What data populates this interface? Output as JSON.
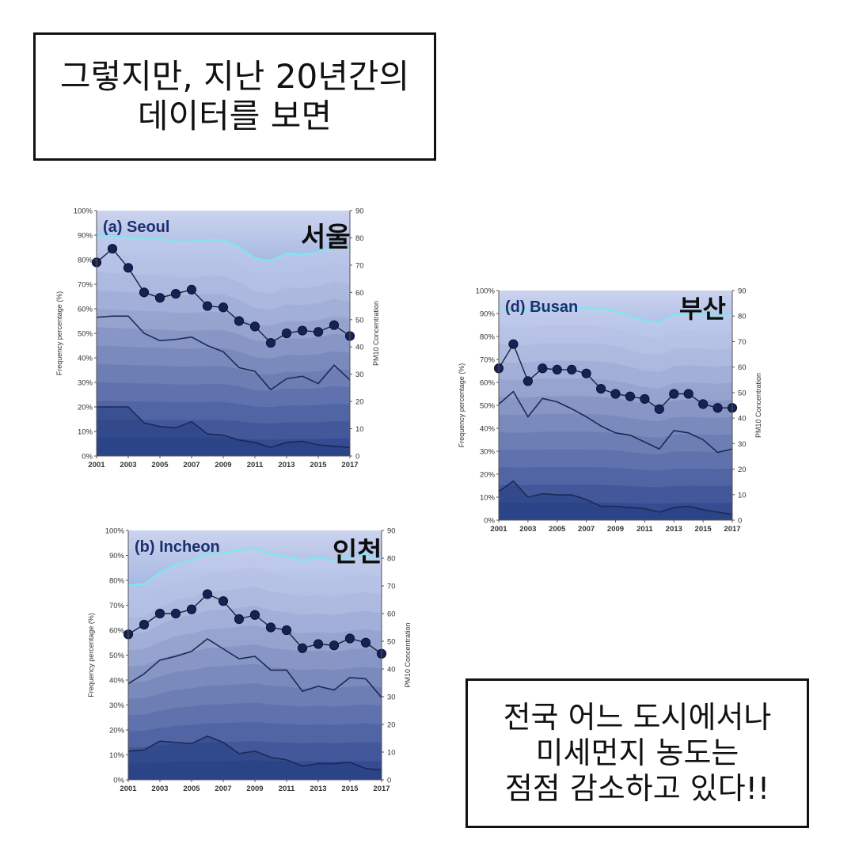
{
  "captions": {
    "top": [
      "그렇지만, 지난 20년간의",
      "데이터를 보면"
    ],
    "bottom": [
      "전국 어느 도시에서나",
      "미세먼지 농도는",
      "점점 감소하고 있다!!"
    ]
  },
  "chart_data": [
    {
      "type": "area",
      "title": "(a) Seoul",
      "city_kr": "서울",
      "ylabel": "Frequency percentage (%)",
      "y2label": "PM10 Concentration",
      "x": [
        2001,
        2002,
        2003,
        2004,
        2005,
        2006,
        2007,
        2008,
        2009,
        2010,
        2011,
        2012,
        2013,
        2014,
        2015,
        2016,
        2017
      ],
      "xticks": [
        "2001",
        "2003",
        "2005",
        "2007",
        "2009",
        "2011",
        "2013",
        "2015",
        "2017"
      ],
      "yticks": [
        "0%",
        "10%",
        "20%",
        "30%",
        "40%",
        "50%",
        "60%",
        "70%",
        "80%",
        "90%",
        "100%"
      ],
      "y2ticks": [
        "0",
        "10",
        "20",
        "30",
        "40",
        "50",
        "60",
        "70",
        "80",
        "90"
      ],
      "ylim": [
        0,
        100
      ],
      "y2lim": [
        0,
        90
      ],
      "series": [
        {
          "values": [
            20,
            20,
            20,
            13.5,
            12,
            11.5,
            14,
            9,
            8.5,
            6.5,
            5.5,
            3.5,
            5.5,
            6,
            4.5,
            4,
            3.5
          ]
        },
        {
          "values": [
            56.5,
            57,
            57,
            50,
            47,
            47.5,
            48.5,
            45,
            42.5,
            36,
            34.5,
            27,
            31.5,
            32.5,
            29.5,
            37,
            31
          ]
        },
        {
          "values": [
            90,
            89.5,
            89,
            88.5,
            88.5,
            87.5,
            87.5,
            88,
            88,
            85,
            80.5,
            79.5,
            82.5,
            82,
            83,
            85.5,
            84
          ]
        }
      ],
      "pm10": [
        71,
        76,
        69,
        60,
        58,
        59.5,
        61,
        55,
        54.5,
        49.5,
        47.5,
        41.5,
        45,
        46,
        45.5,
        48,
        44
      ]
    },
    {
      "type": "area",
      "title": "(b) Incheon",
      "city_kr": "인천",
      "ylabel": "Frequency percentage (%)",
      "y2label": "PM10 Concentration",
      "x": [
        2001,
        2002,
        2003,
        2004,
        2005,
        2006,
        2007,
        2008,
        2009,
        2010,
        2011,
        2012,
        2013,
        2014,
        2015,
        2016,
        2017
      ],
      "xticks": [
        "2001",
        "2003",
        "2005",
        "2007",
        "2009",
        "2011",
        "2013",
        "2015",
        "2017"
      ],
      "yticks": [
        "0%",
        "10%",
        "20%",
        "30%",
        "40%",
        "50%",
        "60%",
        "70%",
        "80%",
        "90%",
        "100%"
      ],
      "y2ticks": [
        "0",
        "10",
        "20",
        "30",
        "40",
        "50",
        "60",
        "70",
        "80",
        "90"
      ],
      "ylim": [
        0,
        100
      ],
      "y2lim": [
        0,
        90
      ],
      "series": [
        {
          "values": [
            11.5,
            12,
            15.5,
            15,
            14.5,
            17.5,
            15,
            10.5,
            11.5,
            9,
            8,
            5.5,
            6.5,
            6.5,
            7,
            4.5,
            4
          ]
        },
        {
          "values": [
            38.5,
            42.5,
            48,
            49.5,
            51.5,
            56.5,
            52.5,
            48.5,
            49.5,
            44,
            44,
            35.5,
            37.5,
            36,
            41,
            40.5,
            33
          ]
        },
        {
          "values": [
            78,
            78.5,
            83,
            86.5,
            88,
            90.5,
            91,
            92,
            93,
            90.5,
            89.5,
            88,
            89,
            88,
            89.5,
            90.5,
            89
          ]
        }
      ],
      "pm10": [
        52.5,
        56,
        60,
        60,
        61.5,
        67,
        64.5,
        58,
        59.5,
        55,
        54,
        47.5,
        49,
        48.5,
        51,
        49.5,
        45.5
      ]
    },
    {
      "type": "area",
      "title": "(d) Busan",
      "city_kr": "부산",
      "ylabel": "Frequency percentage (%)",
      "y2label": "PM10 Concentration",
      "x": [
        2001,
        2002,
        2003,
        2004,
        2005,
        2006,
        2007,
        2008,
        2009,
        2010,
        2011,
        2012,
        2013,
        2014,
        2015,
        2016,
        2017
      ],
      "xticks": [
        "2001",
        "2003",
        "2005",
        "2007",
        "2009",
        "2011",
        "2013",
        "2015",
        "2017"
      ],
      "yticks": [
        "0%",
        "10%",
        "20%",
        "30%",
        "40%",
        "50%",
        "60%",
        "70%",
        "80%",
        "90%",
        "100%"
      ],
      "y2ticks": [
        "0",
        "10",
        "20",
        "30",
        "40",
        "50",
        "60",
        "70",
        "80",
        "90"
      ],
      "ylim": [
        0,
        100
      ],
      "y2lim": [
        0,
        90
      ],
      "series": [
        {
          "values": [
            12.5,
            17,
            10,
            11.5,
            11,
            11,
            9,
            6,
            6,
            5.5,
            5,
            3.5,
            5.5,
            6,
            4.5,
            3.5,
            2.5
          ]
        },
        {
          "values": [
            50.5,
            56,
            45,
            53,
            51.5,
            48.5,
            45,
            41,
            38,
            37,
            34,
            31,
            39,
            38,
            35,
            29.5,
            31
          ]
        },
        {
          "values": [
            92,
            91.5,
            91.5,
            92.5,
            92.5,
            92.5,
            92.5,
            92,
            91,
            89,
            87,
            86,
            89.5,
            90,
            89.5,
            89,
            90
          ]
        }
      ],
      "pm10": [
        59.5,
        69,
        54.5,
        59.5,
        59,
        59,
        57.5,
        51.5,
        49.5,
        48.5,
        47.5,
        43.5,
        49.5,
        49.5,
        45.5,
        44,
        44
      ]
    }
  ]
}
